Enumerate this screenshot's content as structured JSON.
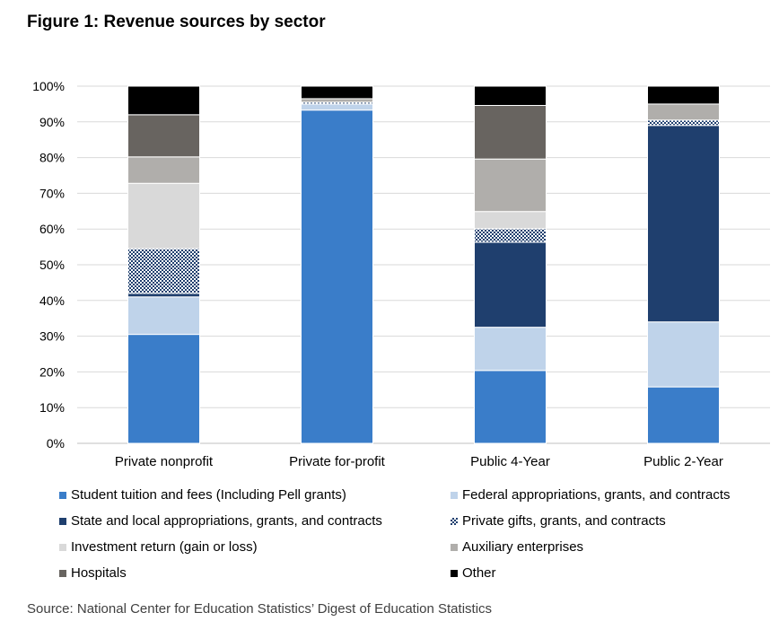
{
  "title": "Figure 1: Revenue sources by sector",
  "source": "Source: National Center for Education Statistics’ Digest of Education Statistics",
  "chart_data": {
    "type": "bar",
    "stacked": true,
    "normalized": true,
    "categories": [
      "Private nonprofit",
      "Private for-profit",
      "Public 4-Year",
      "Public 2-Year"
    ],
    "ylim": [
      0,
      100
    ],
    "yticks": [
      "0%",
      "10%",
      "20%",
      "30%",
      "40%",
      "50%",
      "60%",
      "70%",
      "80%",
      "90%",
      "100%"
    ],
    "grid": true,
    "legend_position": "bottom",
    "series": [
      {
        "name": "Student tuition and fees (Including Pell grants)",
        "color": "#3a7dc9",
        "pattern": "solid",
        "values": [
          30.5,
          93.3,
          20.4,
          15.8
        ]
      },
      {
        "name": "Federal appropriations, grants, and contracts",
        "color": "#bfd3ea",
        "pattern": "solid",
        "values": [
          10.5,
          1.7,
          12.1,
          18.2
        ]
      },
      {
        "name": "State and local appropriations, grants, and contracts",
        "color": "#1f3f6e",
        "pattern": "solid",
        "values": [
          1.0,
          0.0,
          23.8,
          55.0
        ]
      },
      {
        "name": "Private gifts, grants, and contracts",
        "color": "#1f3f6e",
        "pattern": "checker",
        "values": [
          12.5,
          0.5,
          3.8,
          1.5
        ]
      },
      {
        "name": "Investment return (gain or loss)",
        "color": "#d9d9d9",
        "pattern": "solid",
        "values": [
          18.3,
          0.0,
          4.8,
          0.0
        ]
      },
      {
        "name": "Auxiliary enterprises",
        "color": "#b0aeab",
        "pattern": "solid",
        "values": [
          7.4,
          1.0,
          14.7,
          4.5
        ]
      },
      {
        "name": "Hospitals",
        "color": "#686460",
        "pattern": "solid",
        "values": [
          11.8,
          0.0,
          15.0,
          0.0
        ]
      },
      {
        "name": "Other",
        "color": "#000000",
        "pattern": "solid",
        "values": [
          8.0,
          3.5,
          5.4,
          5.0
        ]
      }
    ]
  }
}
